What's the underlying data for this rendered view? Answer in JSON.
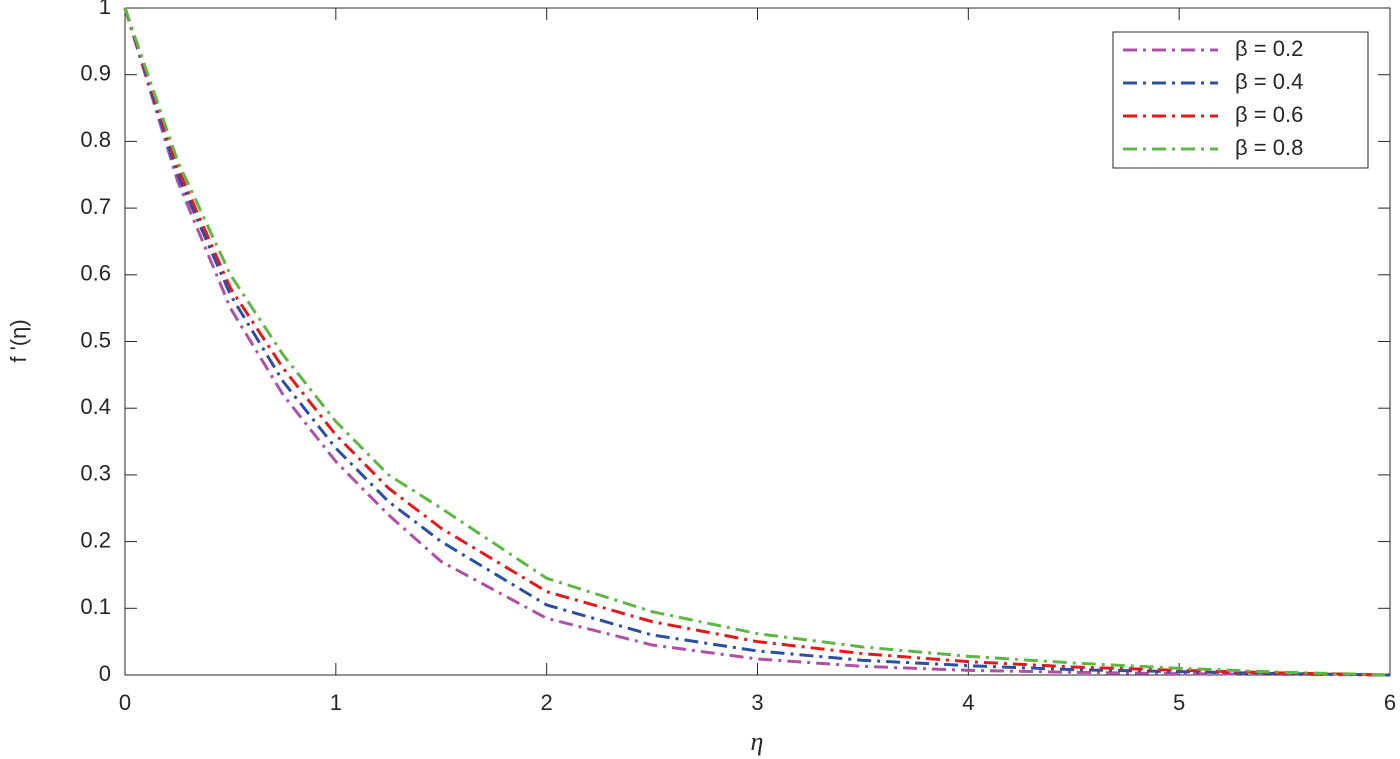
{
  "chart_data": {
    "type": "line",
    "x_label": "η",
    "y_label": "f '(η)",
    "x": [
      0,
      0.25,
      0.5,
      0.75,
      1,
      1.25,
      1.5,
      2,
      2.5,
      3,
      3.5,
      4,
      4.5,
      5,
      5.5,
      6
    ],
    "series": [
      {
        "name": "β = 0.2",
        "color": "#b04fa8",
        "values": [
          1,
          0.74,
          0.55,
          0.42,
          0.32,
          0.24,
          0.17,
          0.085,
          0.045,
          0.024,
          0.013,
          0.007,
          0.004,
          0.002,
          0.001,
          0
        ]
      },
      {
        "name": "β = 0.4",
        "color": "#2b4fa3",
        "values": [
          1,
          0.75,
          0.57,
          0.44,
          0.34,
          0.26,
          0.2,
          0.105,
          0.06,
          0.036,
          0.022,
          0.014,
          0.008,
          0.005,
          0.002,
          0
        ]
      },
      {
        "name": "β = 0.6",
        "color": "#e3191c",
        "values": [
          1,
          0.76,
          0.58,
          0.46,
          0.36,
          0.28,
          0.22,
          0.125,
          0.08,
          0.05,
          0.032,
          0.02,
          0.012,
          0.007,
          0.003,
          0
        ]
      },
      {
        "name": "β = 0.8",
        "color": "#5db744",
        "values": [
          1,
          0.77,
          0.6,
          0.48,
          0.38,
          0.3,
          0.25,
          0.145,
          0.095,
          0.062,
          0.042,
          0.028,
          0.018,
          0.01,
          0.004,
          0
        ]
      }
    ],
    "xlim": [
      0,
      6
    ],
    "xticks": [
      0,
      1,
      2,
      3,
      4,
      5,
      6
    ],
    "ylim": [
      0,
      1
    ],
    "yticks": [
      0,
      0.1,
      0.2,
      0.3,
      0.4,
      0.5,
      0.6,
      0.7,
      0.8,
      0.9,
      1
    ],
    "grid": false,
    "legend": "upper right"
  }
}
